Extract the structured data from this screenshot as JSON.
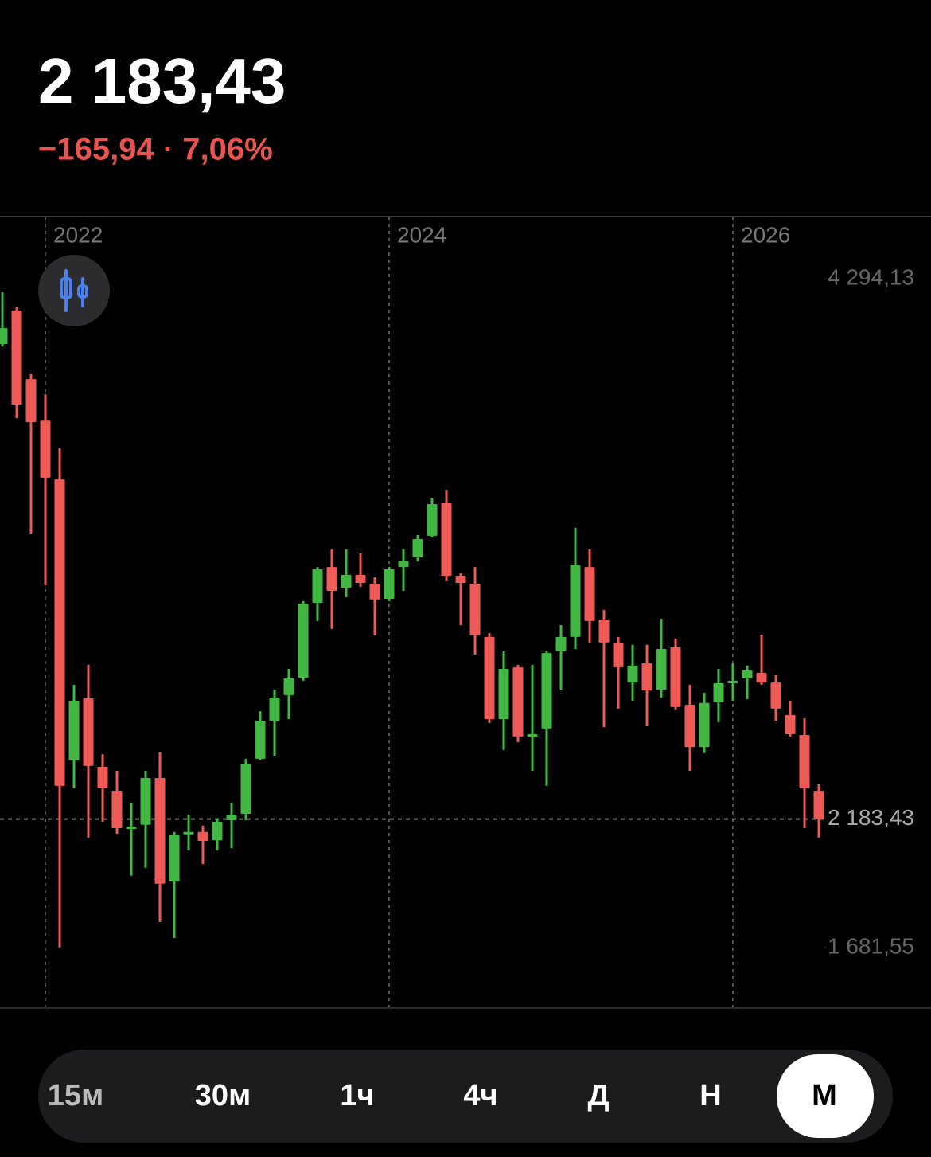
{
  "header": {
    "price": "2 183,43",
    "change": "−165,94 · 7,06%"
  },
  "chart_data": {
    "type": "candlestick",
    "categories": [
      null,
      null,
      null,
      "2022",
      null,
      null,
      null,
      null,
      null,
      null,
      null,
      null,
      null,
      null,
      null,
      null,
      null,
      null,
      null,
      null,
      null,
      null,
      null,
      null,
      null,
      null,
      null,
      "2024",
      null,
      null,
      null,
      null,
      null,
      null,
      null,
      null,
      null,
      null,
      null,
      null,
      null,
      null,
      null,
      null,
      null,
      null,
      null,
      null,
      null,
      null,
      null,
      "2026",
      null,
      null,
      null,
      null,
      null,
      null
    ],
    "open": [
      4039,
      4170,
      3902,
      3740,
      3510,
      2413,
      2655,
      2388,
      2294,
      2145,
      2161,
      2344,
      1940,
      2126,
      2133,
      2101,
      2179,
      2204,
      2419,
      2568,
      2668,
      2736,
      3028,
      3168,
      3087,
      3137,
      3103,
      3044,
      3168,
      3206,
      3290,
      3417,
      3134,
      3103,
      2895,
      2574,
      2776,
      2512,
      2537,
      2839,
      2895,
      3168,
      2963,
      2870,
      2717,
      2792,
      2689,
      2854,
      2630,
      2465,
      2640,
      2714,
      2733,
      2755,
      2717,
      2590,
      2512,
      2294
    ],
    "high": [
      4241,
      4185,
      3921,
      3843,
      3632,
      2708,
      2786,
      2437,
      2372,
      2248,
      2372,
      2444,
      2133,
      2201,
      2158,
      2186,
      2248,
      2419,
      2605,
      2689,
      2770,
      3035,
      3168,
      3237,
      3237,
      3221,
      3128,
      3168,
      3237,
      3293,
      3436,
      3470,
      3143,
      3168,
      2910,
      2839,
      2786,
      2786,
      2839,
      2941,
      3321,
      3237,
      3000,
      2895,
      2864,
      2864,
      2966,
      2888,
      2708,
      2677,
      2770,
      2792,
      2783,
      2904,
      2745,
      2646,
      2577,
      2319
    ],
    "low": [
      4030,
      3750,
      3299,
      3097,
      1682,
      2304,
      2111,
      2173,
      2126,
      1962,
      1993,
      1781,
      1719,
      2061,
      2008,
      2061,
      2070,
      2179,
      2413,
      2428,
      2574,
      2724,
      2957,
      2926,
      3050,
      3091,
      2901,
      3035,
      3075,
      3190,
      3283,
      3112,
      2941,
      2826,
      2559,
      2453,
      2484,
      2372,
      2313,
      2689,
      2848,
      2870,
      2543,
      2615,
      2646,
      2546,
      2658,
      2609,
      2372,
      2441,
      2562,
      2646,
      2652,
      2708,
      2568,
      2506,
      2148,
      2111
    ],
    "close": [
      4101,
      3803,
      3734,
      3517,
      2313,
      2646,
      2391,
      2304,
      2148,
      2154,
      2344,
      1931,
      2123,
      2133,
      2098,
      2173,
      2198,
      2397,
      2568,
      2658,
      2733,
      3025,
      3159,
      3075,
      3137,
      3106,
      3041,
      3159,
      3193,
      3277,
      3414,
      3134,
      3106,
      2901,
      2574,
      2770,
      2506,
      2515,
      2832,
      2895,
      3175,
      2957,
      2873,
      2776,
      2783,
      2686,
      2848,
      2621,
      2465,
      2637,
      2714,
      2724,
      2764,
      2717,
      2615,
      2515,
      2304,
      2183.43
    ],
    "up_color": "#43b743",
    "down_color": "#ee5a55",
    "ylim": [
      1448,
      4537
    ],
    "yticks": [
      {
        "value": 4294.13,
        "label": "4 294,13"
      },
      {
        "value": 2183.43,
        "label": "2 183,43"
      },
      {
        "value": 1681.55,
        "label": "1 681,55"
      }
    ]
  },
  "intervals": [
    "15м",
    "30м",
    "1ч",
    "4ч",
    "Д",
    "Н",
    "М"
  ]
}
